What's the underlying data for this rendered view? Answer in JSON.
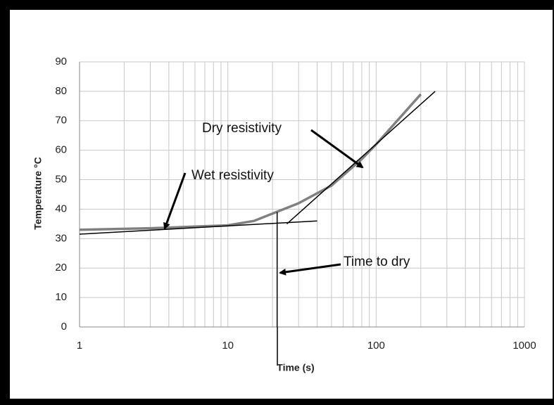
{
  "chart_data": {
    "type": "line",
    "xlabel": "Time (s)",
    "ylabel": "Temperature  °C",
    "xscale": "log",
    "xlim": [
      1,
      1000
    ],
    "ylim": [
      0,
      90
    ],
    "xticks": [
      1,
      10,
      100,
      1000
    ],
    "yticks": [
      0,
      10,
      20,
      30,
      40,
      50,
      60,
      70,
      80,
      90
    ],
    "grid": true,
    "series": [
      {
        "color": "#808080",
        "x": [
          1,
          3,
          10,
          15,
          20,
          30,
          50,
          80,
          100,
          200
        ],
        "values": [
          33,
          33.5,
          34.5,
          36,
          38.5,
          42,
          48,
          57,
          62,
          79
        ]
      },
      {
        "color": "#000000",
        "x": [
          1,
          40
        ],
        "values": [
          31.5,
          36
        ]
      },
      {
        "color": "#000000",
        "x": [
          25,
          250
        ],
        "values": [
          35,
          80
        ]
      },
      {
        "color": "#000000",
        "x": [
          21.5,
          21.5
        ],
        "values": [
          39,
          0
        ]
      }
    ],
    "annotations": [
      "Dry resistivity",
      "Wet resistivity",
      "Time to dry"
    ]
  }
}
